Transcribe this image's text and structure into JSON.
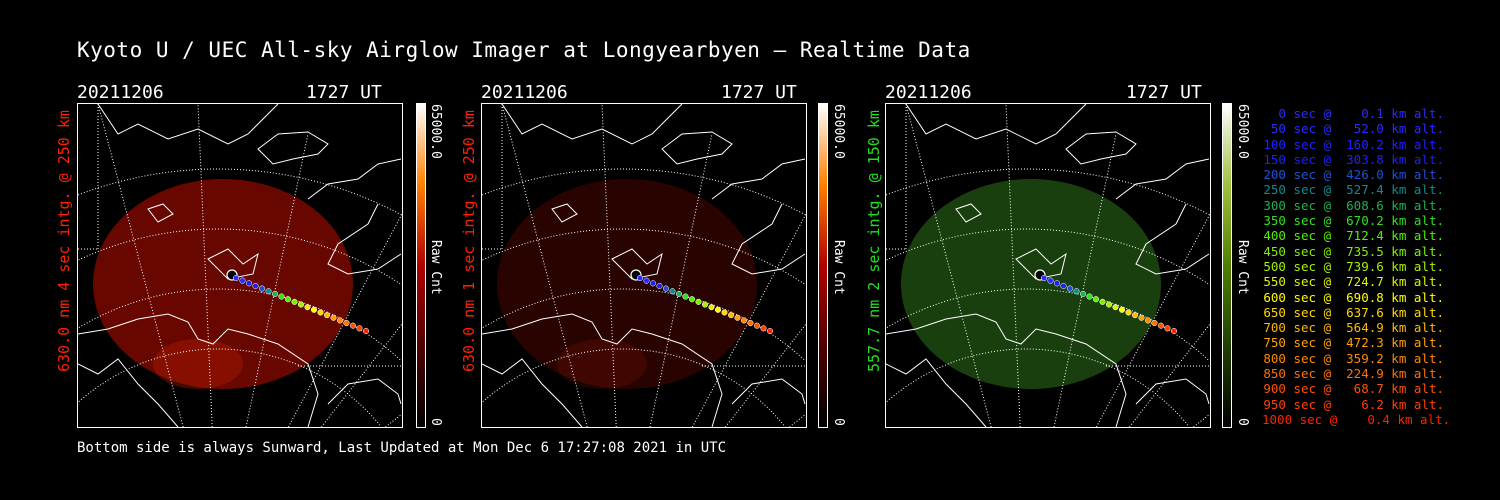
{
  "title": "Kyoto U / UEC All-sky Airglow Imager at Longyearbyen — Realtime Data",
  "footer": "Bottom side is always Sunward, Last Updated at Mon Dec  6 17:27:08 2021 in UTC",
  "panels": [
    {
      "date": "20211206",
      "time": "1727 UT",
      "side_label": "630.0 nm 4 sec intg. @ 250 km",
      "side_color": "#ff2000",
      "cb_max": "65000.0",
      "cb_min": "0",
      "cb_label": "Raw Cnt",
      "glow_color": "#8a0a00",
      "glow_opacity": 0.75
    },
    {
      "date": "20211206",
      "time": "1727 UT",
      "side_label": "630.0 nm 1 sec intg. @ 250 km",
      "side_color": "#ff2000",
      "cb_max": "65000.0",
      "cb_min": "0",
      "cb_label": "Raw Cnt",
      "glow_color": "#3a0400",
      "glow_opacity": 0.7
    },
    {
      "date": "20211206",
      "time": "1727 UT",
      "side_label": "557.7 nm 2 sec intg. @ 150 km",
      "side_color": "#20e020",
      "cb_max": "65000.0",
      "cb_min": "0",
      "cb_label": "Raw Cnt",
      "glow_color": "#1e4a10",
      "glow_opacity": 0.85
    }
  ],
  "legend": [
    {
      "text": "0 sec @    0.1 km alt.",
      "color": "#2a2aff"
    },
    {
      "text": "50 sec @   52.0 km alt.",
      "color": "#2a2aff"
    },
    {
      "text": "100 sec @  160.2 km alt.",
      "color": "#2020ff"
    },
    {
      "text": "150 sec @  303.8 km alt.",
      "color": "#2020f0"
    },
    {
      "text": "200 sec @  426.0 km alt.",
      "color": "#2050d0"
    },
    {
      "text": "250 sec @  527.4 km alt.",
      "color": "#108a8a"
    },
    {
      "text": "300 sec @  608.6 km alt.",
      "color": "#20b050"
    },
    {
      "text": "350 sec @  670.2 km alt.",
      "color": "#30e020"
    },
    {
      "text": "400 sec @  712.4 km alt.",
      "color": "#50f000"
    },
    {
      "text": "450 sec @  735.5 km alt.",
      "color": "#80f000"
    },
    {
      "text": "500 sec @  739.6 km alt.",
      "color": "#a8f000"
    },
    {
      "text": "550 sec @  724.7 km alt.",
      "color": "#e0f000"
    },
    {
      "text": "600 sec @  690.8 km alt.",
      "color": "#ffff00"
    },
    {
      "text": "650 sec @  637.6 km alt.",
      "color": "#ffd800"
    },
    {
      "text": "700 sec @  564.9 km alt.",
      "color": "#ffb800"
    },
    {
      "text": "750 sec @  472.3 km alt.",
      "color": "#ffa000"
    },
    {
      "text": "800 sec @  359.2 km alt.",
      "color": "#ff8800"
    },
    {
      "text": "850 sec @  224.9 km alt.",
      "color": "#ff7000"
    },
    {
      "text": "900 sec @   68.7 km alt.",
      "color": "#ff5000"
    },
    {
      "text": "950 sec @    6.2 km alt.",
      "color": "#ff4000"
    },
    {
      "text": "1000 sec @    0.4 km alt.",
      "color": "#ff2000"
    }
  ]
}
